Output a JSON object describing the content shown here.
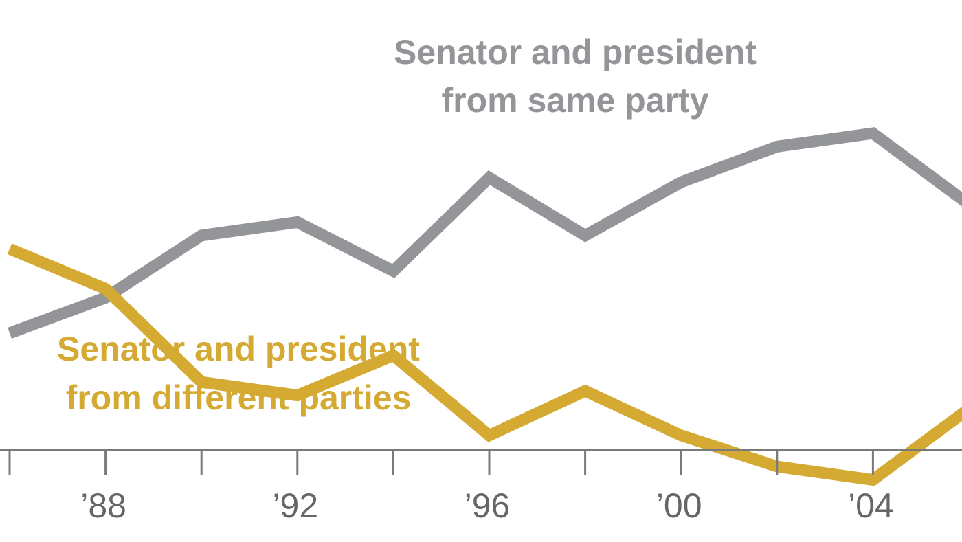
{
  "chart_data": {
    "type": "line",
    "title": "",
    "xlabel": "",
    "ylabel": "",
    "x": [
      1986,
      1988,
      1990,
      1992,
      1994,
      1996,
      1998,
      2000,
      2002,
      2004,
      2006
    ],
    "x_ticks": [
      1986,
      1988,
      1990,
      1992,
      1994,
      1996,
      1998,
      2000,
      2002,
      2004,
      2006
    ],
    "tick_labels": [
      {
        "year": 1988,
        "label": "’88"
      },
      {
        "year": 1992,
        "label": "’92"
      },
      {
        "year": 1996,
        "label": "’96"
      },
      {
        "year": 2000,
        "label": "’00"
      },
      {
        "year": 2004,
        "label": "’04"
      }
    ],
    "series": [
      {
        "name": "same",
        "label_lines": [
          "Senator and president",
          "from same party"
        ],
        "color": "#939598",
        "values": [
          61.5,
          65.5,
          72.5,
          74,
          68.5,
          79,
          72.5,
          78.5,
          82.5,
          84,
          76
        ]
      },
      {
        "name": "different",
        "label_lines": [
          "Senator and president",
          "from different parties"
        ],
        "color": "#d4aa33",
        "values": [
          71,
          66.5,
          56,
          54.5,
          59,
          50,
          55,
          50,
          46.5,
          45,
          53
        ]
      }
    ],
    "ylim": [
      38,
      99
    ],
    "grid": false,
    "legend": "direct-labels"
  }
}
